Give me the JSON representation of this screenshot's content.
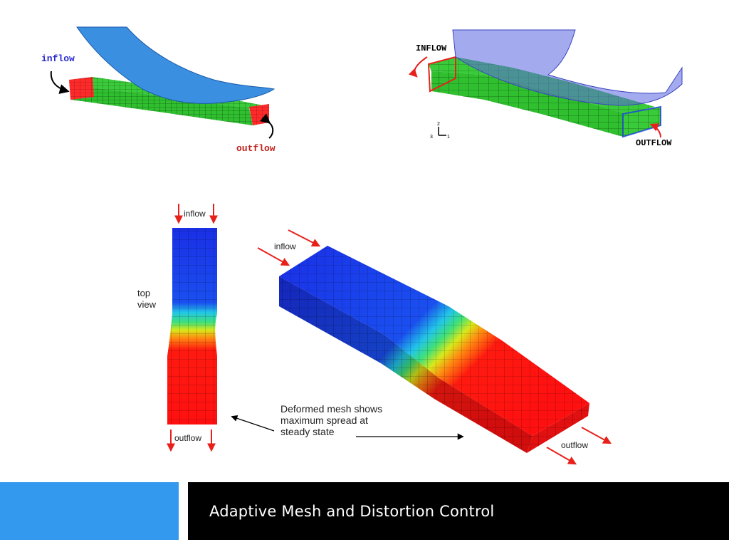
{
  "figure1": {
    "inflow_label": "inflow",
    "outflow_label": "outflow"
  },
  "figure2": {
    "inflow_label": "INFLOW",
    "outflow_label": "OUTFLOW"
  },
  "figure3": {
    "top_inflow_label": "inflow",
    "top_outflow_label": "outflow",
    "top_view_label_line1": "top",
    "top_view_label_line2": "view",
    "iso_inflow_label": "inflow",
    "iso_outflow_label": "outflow",
    "caption_line1": "Deformed mesh shows",
    "caption_line2": "maximum spread at",
    "caption_line3": "steady state"
  },
  "footer": {
    "title": "Adaptive Mesh and Distortion Control"
  },
  "colors": {
    "footer_accent": "#3399ee",
    "footer_bar": "#000000",
    "roller_blue": "#3b8fe0",
    "mesh_green": "#33cc33",
    "mesh_red": "#ff1a1a",
    "mesh_blue": "#1a3fe0"
  }
}
